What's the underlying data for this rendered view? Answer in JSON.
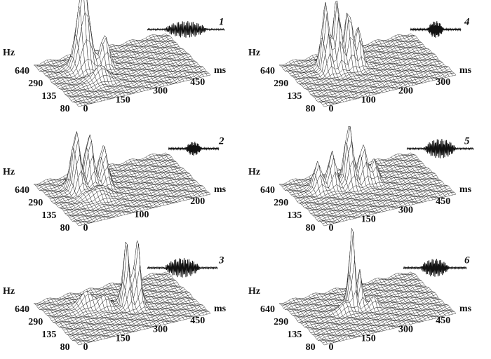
{
  "panels": [
    {
      "label": "1",
      "freq_title": "Hz",
      "freq_ticks": [
        "640",
        "290",
        "135",
        "80"
      ],
      "time_title": "ms",
      "time_ticks": [
        "0",
        "150",
        "300",
        "450"
      ]
    },
    {
      "label": "2",
      "freq_title": "Hz",
      "freq_ticks": [
        "640",
        "290",
        "135",
        "80"
      ],
      "time_title": "ms",
      "time_ticks": [
        "0",
        "100",
        "200"
      ]
    },
    {
      "label": "3",
      "freq_title": "Hz",
      "freq_ticks": [
        "640",
        "290",
        "135",
        "80"
      ],
      "time_title": "ms",
      "time_ticks": [
        "0",
        "150",
        "300",
        "450"
      ]
    },
    {
      "label": "4",
      "freq_title": "Hz",
      "freq_ticks": [
        "640",
        "290",
        "135",
        "80"
      ],
      "time_title": "ms",
      "time_ticks": [
        "0",
        "100",
        "200",
        "300"
      ]
    },
    {
      "label": "5",
      "freq_title": "Hz",
      "freq_ticks": [
        "640",
        "290",
        "135",
        "80"
      ],
      "time_title": "ms",
      "time_ticks": [
        "0",
        "150",
        "300",
        "450"
      ]
    },
    {
      "label": "6",
      "freq_title": "Hz",
      "freq_ticks": [
        "640",
        "290",
        "135",
        "80"
      ],
      "time_title": "ms",
      "time_ticks": [
        "0",
        "150",
        "300",
        "450"
      ]
    }
  ]
}
